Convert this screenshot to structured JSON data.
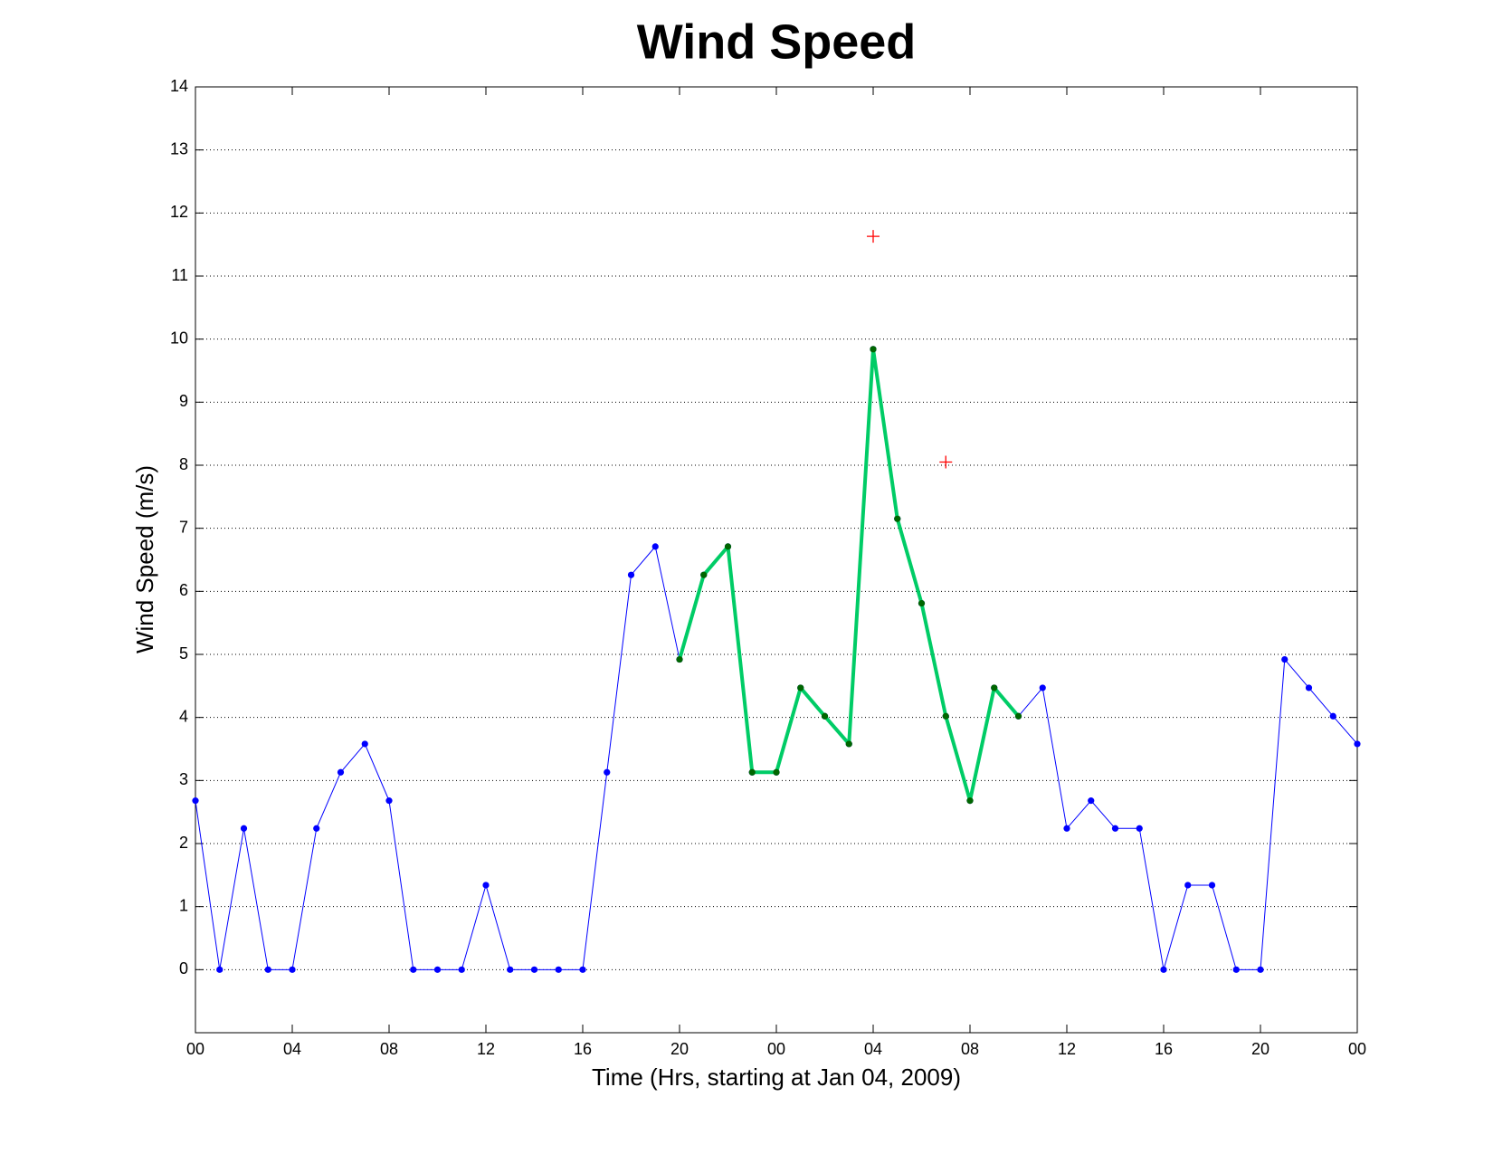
{
  "chart_data": {
    "type": "line",
    "title": "Wind Speed",
    "xlabel": "Time (Hrs, starting at Jan 04, 2009)",
    "ylabel": "Wind Speed (m/s)",
    "xlim": [
      0,
      48
    ],
    "ylim": [
      -1,
      14
    ],
    "xticks": [
      {
        "value": 0,
        "label": "00"
      },
      {
        "value": 4,
        "label": "04"
      },
      {
        "value": 8,
        "label": "08"
      },
      {
        "value": 12,
        "label": "12"
      },
      {
        "value": 16,
        "label": "16"
      },
      {
        "value": 20,
        "label": "20"
      },
      {
        "value": 24,
        "label": "00"
      },
      {
        "value": 28,
        "label": "04"
      },
      {
        "value": 32,
        "label": "08"
      },
      {
        "value": 36,
        "label": "12"
      },
      {
        "value": 40,
        "label": "16"
      },
      {
        "value": 44,
        "label": "20"
      },
      {
        "value": 48,
        "label": "00"
      }
    ],
    "yticks": [
      0,
      1,
      2,
      3,
      4,
      5,
      6,
      7,
      8,
      9,
      10,
      11,
      12,
      13,
      14
    ],
    "grid": "y",
    "series": [
      {
        "color": "#0000ff",
        "marker_color": "#0000ff",
        "marker": "dot",
        "line_width": 1,
        "x": [
          0,
          1,
          2,
          3,
          4,
          5,
          6,
          7,
          8,
          9,
          10,
          11,
          12,
          13,
          14,
          15,
          16,
          17,
          18,
          19,
          20,
          21,
          22,
          23,
          24,
          25,
          26,
          27,
          28,
          29,
          30,
          31,
          32,
          33,
          34,
          35,
          36,
          37,
          38,
          39,
          40,
          41,
          42,
          43,
          44,
          45,
          46,
          47,
          48
        ],
        "values": [
          2.68,
          0,
          2.24,
          0,
          0,
          2.24,
          3.13,
          3.58,
          2.68,
          0,
          0,
          0,
          1.34,
          0,
          0,
          0,
          0,
          3.13,
          6.26,
          6.71,
          4.92,
          6.26,
          6.71,
          3.13,
          3.13,
          4.47,
          4.02,
          3.58,
          9.84,
          7.15,
          5.81,
          4.02,
          2.68,
          4.47,
          4.02,
          4.47,
          2.24,
          2.68,
          2.24,
          2.24,
          0,
          1.34,
          1.34,
          0,
          0,
          4.92,
          4.47,
          4.02,
          3.58
        ]
      },
      {
        "color": "#00cc66",
        "marker_color": "#006600",
        "marker": "dot",
        "line_width": 4,
        "x": [
          20,
          21,
          22,
          23,
          24,
          25,
          26,
          27,
          28,
          29,
          30,
          31,
          32,
          33,
          34
        ],
        "values": [
          4.92,
          6.26,
          6.71,
          3.13,
          3.13,
          4.47,
          4.02,
          3.58,
          9.84,
          7.15,
          5.81,
          4.02,
          2.68,
          4.47,
          4.02
        ]
      },
      {
        "color": "#ff0000",
        "marker_color": "#ff0000",
        "marker": "plus",
        "line_width": 0,
        "x": [
          28,
          31
        ],
        "values": [
          11.63,
          8.05
        ]
      }
    ]
  }
}
